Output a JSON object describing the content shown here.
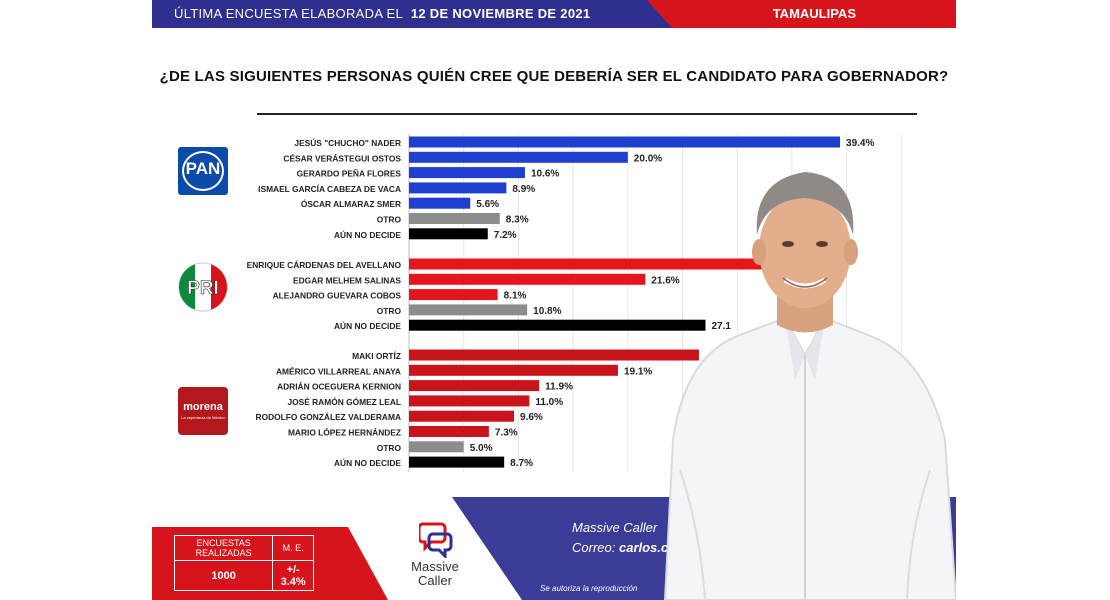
{
  "header": {
    "left_text": "ÚLTIMA ENCUESTA ELABORADA EL",
    "date": "12 DE NOVIEMBRE DE 2021",
    "state": "TAMAULIPAS",
    "colors": {
      "blue": "#2e2f8f",
      "red": "#d7141b"
    }
  },
  "title": "¿DE LAS SIGUIENTES PERSONAS QUIÉN CREE QUE DEBERÍA SER EL CANDIDATO PARA GOBERNADOR?",
  "parties": [
    {
      "name": "PAN",
      "logo_text": "PAN",
      "icon": "pan-logo"
    },
    {
      "name": "PRI",
      "logo_text": "PRI",
      "icon": "pri-logo"
    },
    {
      "name": "morena",
      "logo_text": "morena",
      "logo_subtext": "La esperanza de México",
      "icon": "morena-logo"
    }
  ],
  "chart_data": {
    "type": "bar",
    "orientation": "horizontal",
    "xlim": [
      0,
      45
    ],
    "grid": true,
    "groups": [
      {
        "party": "PAN",
        "color": "#1f3fce",
        "items": [
          {
            "label": "JESÚS \"CHUCHO\" NADER",
            "value": 39.4,
            "value_label": "39.4%"
          },
          {
            "label": "CÉSAR VERÁSTEGUI OSTOS",
            "value": 20.0,
            "value_label": "20.0%"
          },
          {
            "label": "GERARDO PEÑA FLORES",
            "value": 10.6,
            "value_label": "10.6%"
          },
          {
            "label": "ISMAEL GARCÍA CABEZA DE VACA",
            "value": 8.9,
            "value_label": "8.9%"
          },
          {
            "label": "ÓSCAR ALMARAZ SMER",
            "value": 5.6,
            "value_label": "5.6%"
          },
          {
            "label": "OTRO",
            "value": 8.3,
            "value_label": "8.3%",
            "color": "#8c8c8c"
          },
          {
            "label": "AÚN NO DECIDE",
            "value": 7.2,
            "value_label": "7.2%",
            "color": "#000000"
          }
        ]
      },
      {
        "party": "PRI",
        "color": "#e3161b",
        "items": [
          {
            "label": "ENRIQUE CÁRDENAS DEL AVELLANO",
            "value": 33.5,
            "value_label": ""
          },
          {
            "label": "EDGAR MELHEM SALINAS",
            "value": 21.6,
            "value_label": "21.6%"
          },
          {
            "label": "ALEJANDRO GUEVARA COBOS",
            "value": 8.1,
            "value_label": "8.1%"
          },
          {
            "label": "OTRO",
            "value": 10.8,
            "value_label": "10.8%",
            "color": "#8c8c8c"
          },
          {
            "label": "AÚN NO DECIDE",
            "value": 27.1,
            "value_label": "27.1",
            "color": "#000000"
          }
        ]
      },
      {
        "party": "morena",
        "color": "#c8141a",
        "items": [
          {
            "label": "MAKI ORTÍZ",
            "value": 26.5,
            "value_label": ""
          },
          {
            "label": "AMÉRICO VILLARREAL ANAYA",
            "value": 19.1,
            "value_label": "19.1%"
          },
          {
            "label": "ADRIÁN OCEGUERA KERNION",
            "value": 11.9,
            "value_label": "11.9%"
          },
          {
            "label": "JOSÉ RAMÓN GÓMEZ LEAL",
            "value": 11.0,
            "value_label": "11.0%"
          },
          {
            "label": "RODOLFO GONZÁLEZ VALDERAMA",
            "value": 9.6,
            "value_label": "9.6%"
          },
          {
            "label": "MARIO LÓPEZ HERNÁNDEZ",
            "value": 7.3,
            "value_label": "7.3%"
          },
          {
            "label": "OTRO",
            "value": 5.0,
            "value_label": "5.0%",
            "color": "#8c8c8c"
          },
          {
            "label": "AÚN NO DECIDE",
            "value": 8.7,
            "value_label": "8.7%",
            "color": "#000000"
          }
        ]
      }
    ]
  },
  "footer": {
    "stats_header_1": "ENCUESTAS REALIZADAS",
    "stats_header_2": "M. E.",
    "surveys": "1000",
    "margin_error": "+/- 3.4%",
    "brand": "Massive Caller",
    "line1": "Massive Caller",
    "line2_prefix": "Correo:",
    "line2_value": "carlos.c",
    "note": "Se autoriza la reproducción"
  }
}
